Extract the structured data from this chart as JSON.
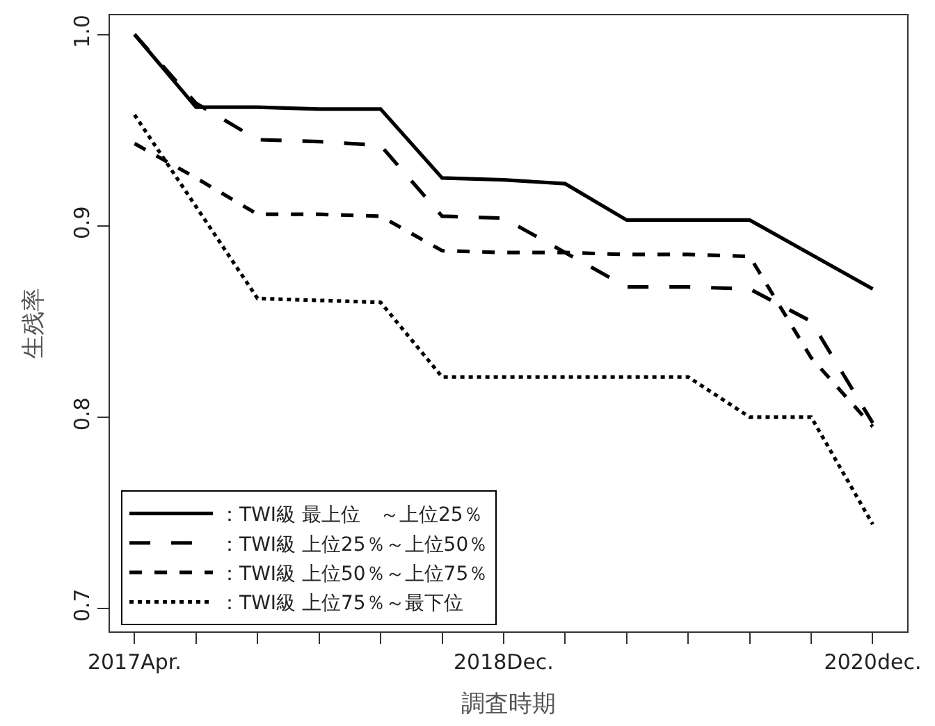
{
  "chart_data": {
    "type": "line",
    "xlabel": "調査時期",
    "ylabel": "生残率",
    "categories": [
      "2017Apr.",
      null,
      null,
      null,
      null,
      null,
      "2018Dec.",
      null,
      null,
      null,
      null,
      null,
      "2020dec."
    ],
    "ylim": [
      0.688,
      1.01
    ],
    "yticks": [
      {
        "value": 0.7,
        "label": "0.7"
      },
      {
        "value": 0.8,
        "label": "0.8"
      },
      {
        "value": 0.9,
        "label": "0.9"
      },
      {
        "value": 1.0,
        "label": "1.0"
      }
    ],
    "legend": "bottom left",
    "marker": "none",
    "series": [
      {
        "name": "：TWI級 最上位　～上位25％",
        "color": "#000000",
        "line_style": "solid",
        "values": [
          1.0,
          0.962,
          0.962,
          0.961,
          0.961,
          0.925,
          0.924,
          0.922,
          0.903,
          0.903,
          0.903,
          0.885,
          0.867
        ]
      },
      {
        "name": "：TWI級 上位25％～上位50％",
        "color": "#000000",
        "line_style": "longdash",
        "values": [
          1.0,
          0.964,
          0.945,
          0.944,
          0.942,
          0.905,
          0.904,
          0.886,
          0.868,
          0.868,
          0.867,
          0.85,
          0.797
        ]
      },
      {
        "name": "：TWI級 上位50％～上位75％",
        "color": "#000000",
        "line_style": "dashed",
        "values": [
          0.943,
          0.925,
          0.906,
          0.906,
          0.905,
          0.887,
          0.886,
          0.886,
          0.885,
          0.885,
          0.884,
          0.831,
          0.795
        ]
      },
      {
        "name": "：TWI級 上位75％～最下位",
        "color": "#000000",
        "line_style": "dotted",
        "values": [
          0.958,
          0.91,
          0.862,
          0.861,
          0.86,
          0.821,
          0.821,
          0.821,
          0.821,
          0.821,
          0.8,
          0.8,
          0.744
        ]
      }
    ]
  }
}
